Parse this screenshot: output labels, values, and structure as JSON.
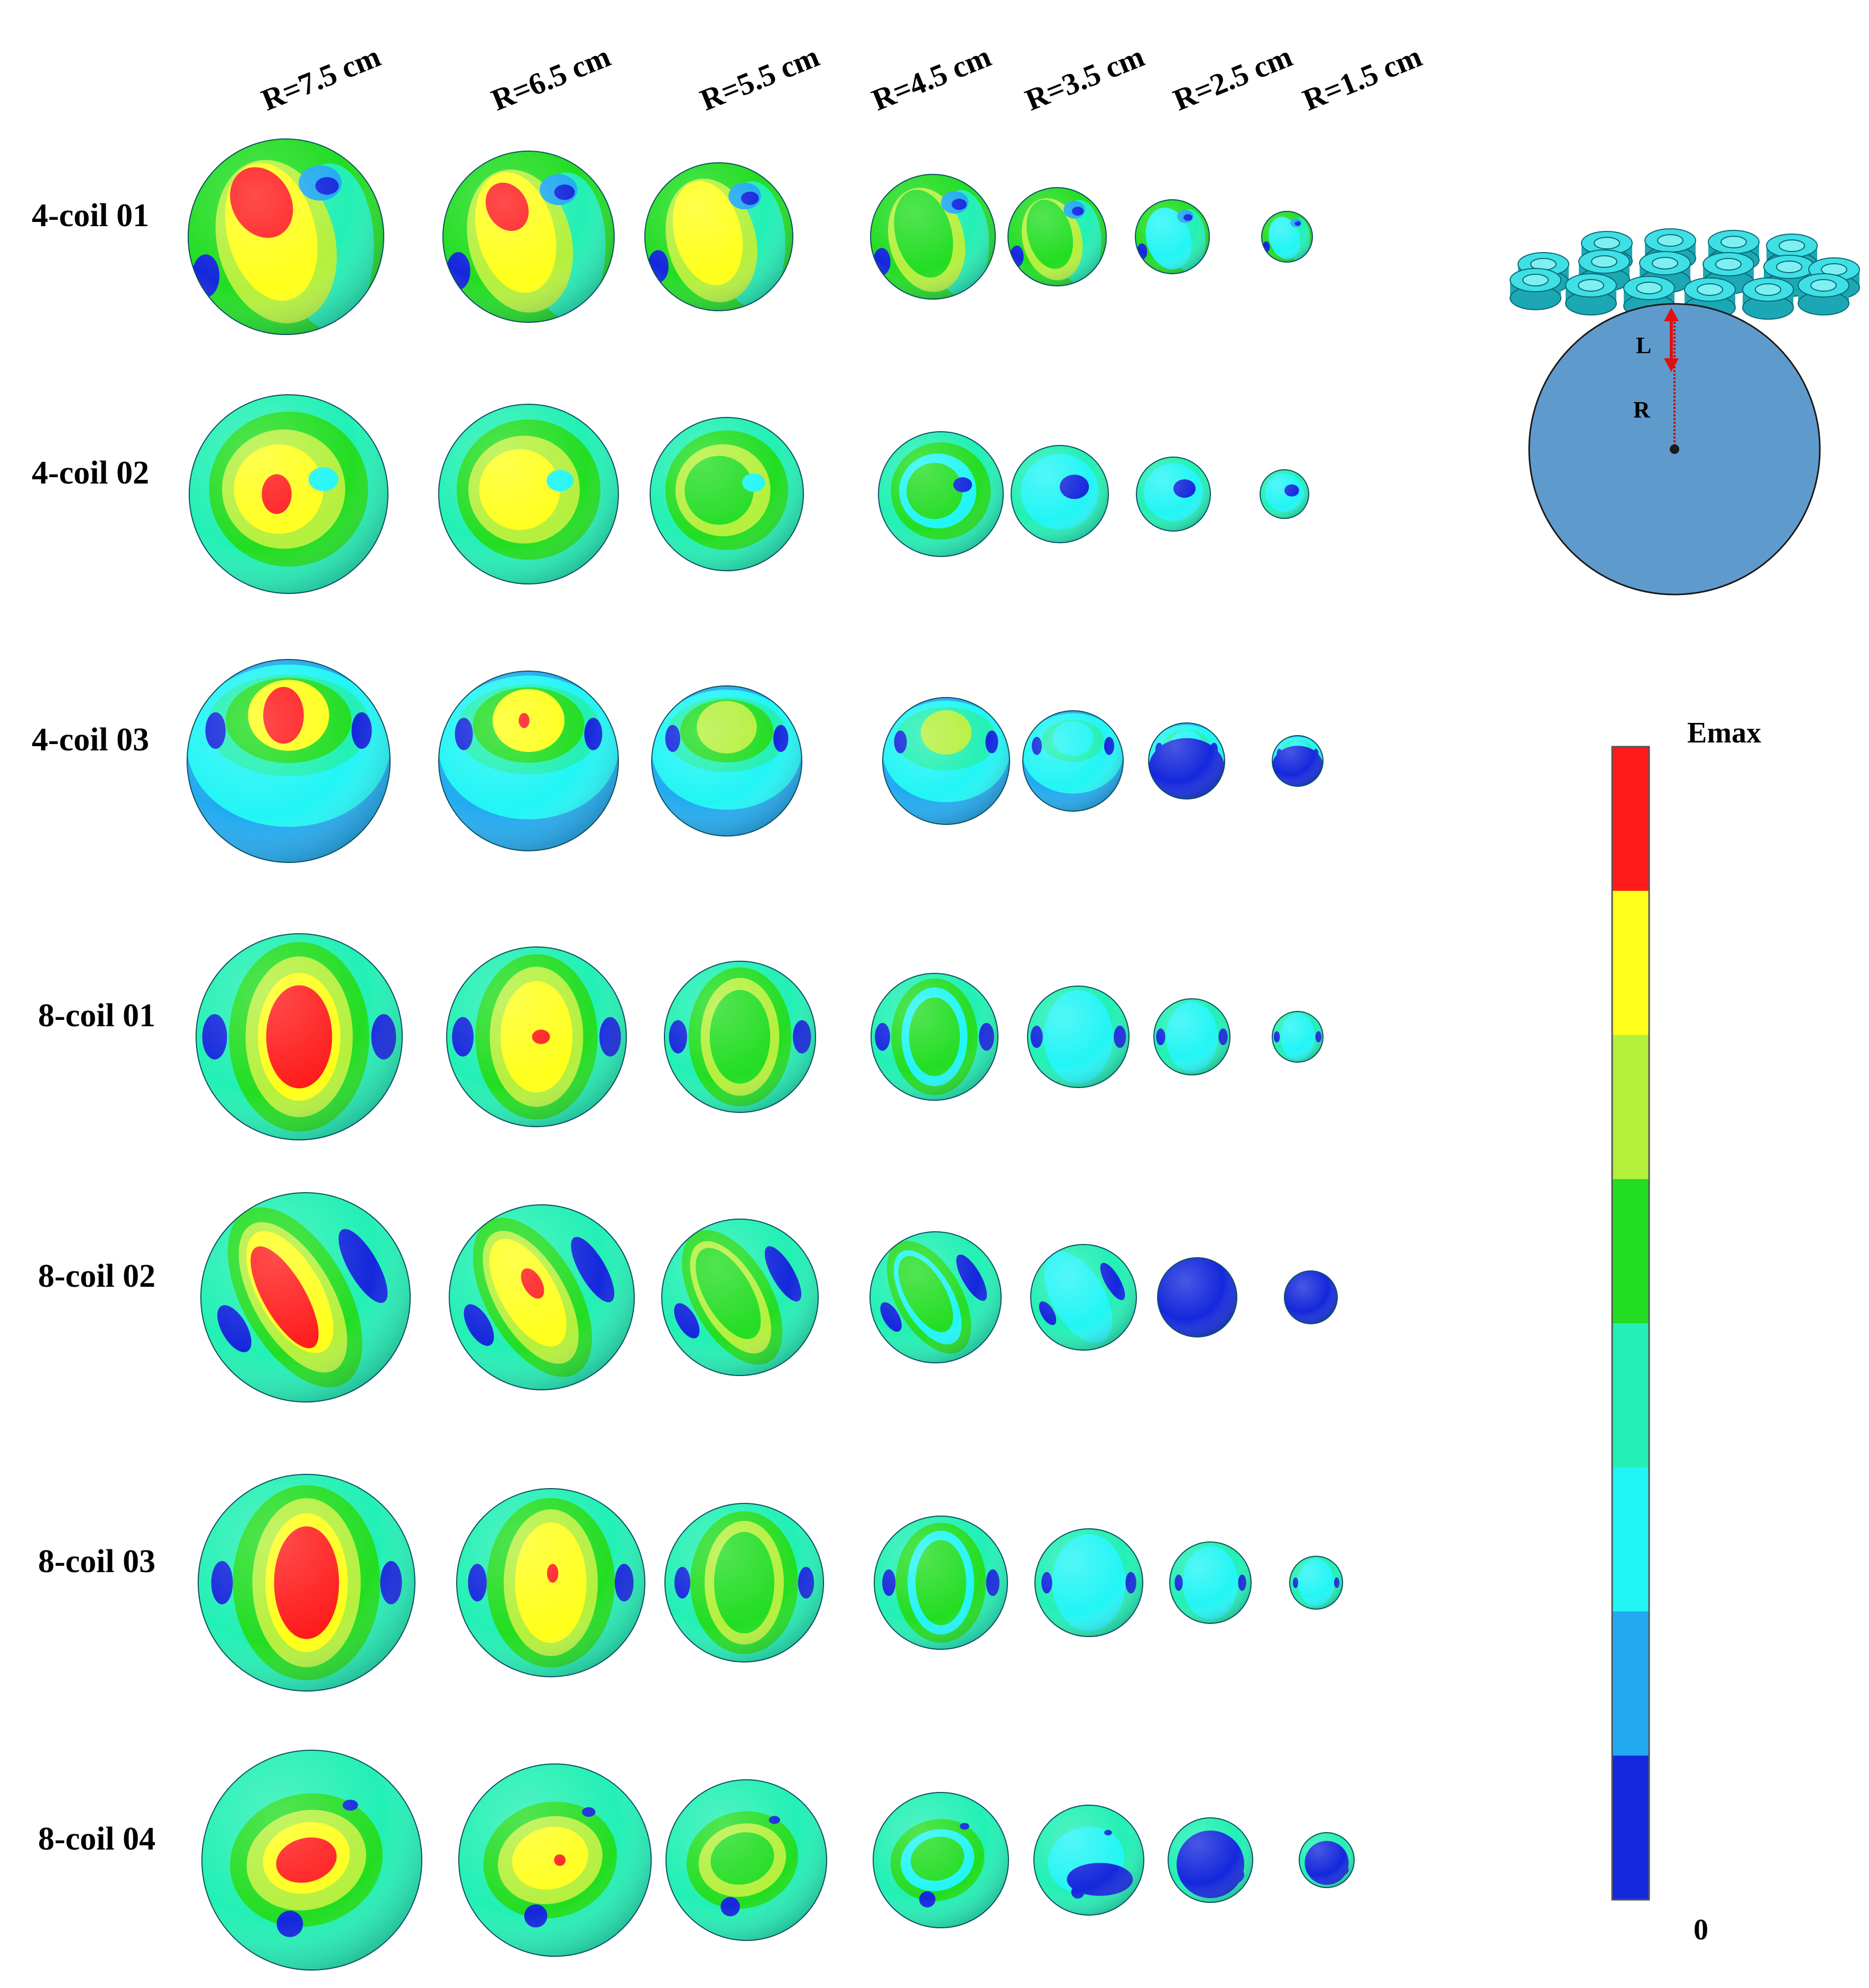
{
  "columns": [
    "R=7.5 cm",
    "R=6.5 cm",
    "R=5.5 cm",
    "R=4.5 cm",
    "R=3.5 cm",
    "R=2.5 cm",
    "R=1.5 cm"
  ],
  "rows": [
    "4-coil 01",
    "4-coil 02",
    "4-coil 03",
    "8-coil 01",
    "8-coil 02",
    "8-coil 03",
    "8-coil 04"
  ],
  "legend": {
    "max_label": "Emax",
    "min_label": "0",
    "colors": [
      "#ff1a1a",
      "#ffff1a",
      "#b4f03c",
      "#22dd22",
      "#22f0b4",
      "#22f5f5",
      "#22aaf0",
      "#1428dc"
    ]
  },
  "schematic": {
    "gap_label": "L",
    "radius_label": "R",
    "sphere_color": "#5f9acd",
    "coil_color": "#3ee0e6",
    "arrow_color": "#e01010"
  },
  "field_colors": {
    "red": "#ff1a1a",
    "yellow": "#ffff1a",
    "lime": "#b4f03c",
    "green": "#22dd22",
    "aqua_green": "#22f0b4",
    "cyan": "#22f5f5",
    "light_blue": "#22aaf0",
    "blue": "#1428dc"
  }
}
